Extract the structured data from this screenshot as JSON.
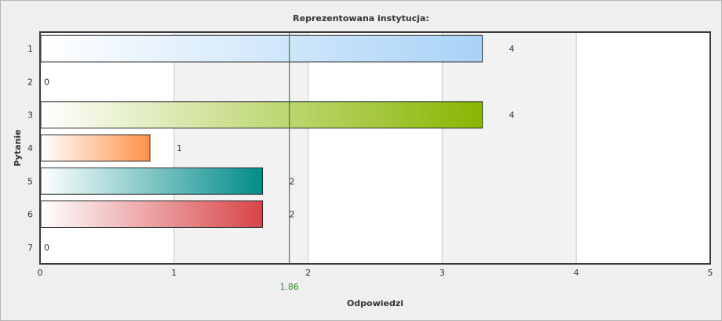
{
  "chart_data": {
    "type": "bar",
    "orientation": "horizontal",
    "title": "Reprezentowana instytucja:",
    "xlabel": "Odpowiedzi",
    "ylabel": "Pytanie",
    "categories": [
      "1",
      "2",
      "3",
      "4",
      "5",
      "6",
      "7"
    ],
    "values": [
      4,
      0,
      4,
      1,
      2,
      2,
      0
    ],
    "bar_lengths": [
      3.3,
      0,
      3.3,
      0.82,
      1.66,
      1.66,
      0
    ],
    "xlim": [
      0,
      5
    ],
    "x_ticks": [
      "0",
      "1",
      "2",
      "3",
      "4",
      "5"
    ],
    "average": {
      "value": 1.86,
      "label": "1.86",
      "color": "#2a8a2a"
    },
    "grid": true,
    "bar_colors": [
      "#a9d2f7",
      "#ffffff",
      "#88b600",
      "#ff914a",
      "#008c8a",
      "#d84447",
      "#ffffff"
    ]
  }
}
